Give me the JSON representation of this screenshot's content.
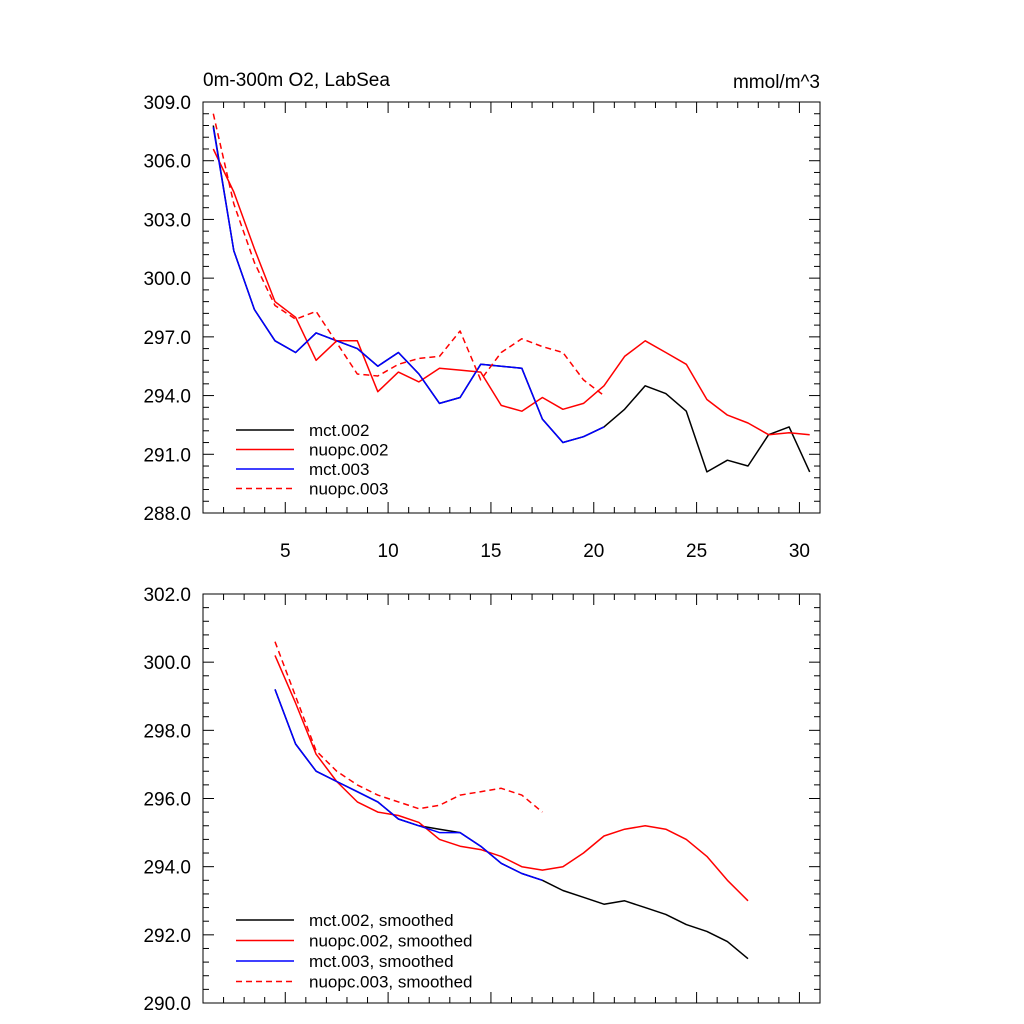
{
  "chart_data": [
    {
      "type": "line",
      "title": "0m-300m O2, LabSea",
      "units": "mmol/m^3",
      "xlabel": "",
      "ylabel": "",
      "xlim": [
        1,
        31
      ],
      "ylim": [
        288.0,
        309.0
      ],
      "x_ticks": [
        5,
        10,
        15,
        20,
        25,
        30
      ],
      "x_tick_labels": [
        "5",
        "10",
        "15",
        "20",
        "25",
        "30"
      ],
      "y_ticks": [
        288.0,
        291.0,
        294.0,
        297.0,
        300.0,
        303.0,
        306.0,
        309.0
      ],
      "y_tick_labels": [
        "288.0",
        "291.0",
        "294.0",
        "297.0",
        "300.0",
        "303.0",
        "306.0",
        "309.0"
      ],
      "legend_position": "bottom-left",
      "series": [
        {
          "name": "mct.002",
          "color": "#000000",
          "dash": "solid",
          "x": [
            1.5,
            2.5,
            3.5,
            4.5,
            5.5,
            6.5,
            7.5,
            8.5,
            9.5,
            10.5,
            11.5,
            12.5,
            13.5,
            14.5,
            15.5,
            16.5,
            17.5,
            18.5,
            19.5,
            20.5,
            21.5,
            22.5,
            23.5,
            24.5,
            25.5,
            26.5,
            27.5,
            28.5,
            29.5,
            30.5
          ],
          "values": [
            307.8,
            301.4,
            298.4,
            296.8,
            296.2,
            297.2,
            296.8,
            296.4,
            295.5,
            296.2,
            295.1,
            293.6,
            293.9,
            295.6,
            295.5,
            295.4,
            292.8,
            291.6,
            291.9,
            292.4,
            293.3,
            294.5,
            294.1,
            293.2,
            290.1,
            290.7,
            290.4,
            292.0,
            292.4,
            290.1
          ]
        },
        {
          "name": "nuopc.002",
          "color": "#ff0000",
          "dash": "solid",
          "x": [
            1.5,
            2.5,
            3.5,
            4.5,
            5.5,
            6.5,
            7.5,
            8.5,
            9.5,
            10.5,
            11.5,
            12.5,
            13.5,
            14.5,
            15.5,
            16.5,
            17.5,
            18.5,
            19.5,
            20.5,
            21.5,
            22.5,
            23.5,
            24.5,
            25.5,
            26.5,
            27.5,
            28.5,
            29.5,
            30.5
          ],
          "values": [
            306.6,
            304.4,
            301.5,
            298.8,
            298.0,
            295.8,
            296.8,
            296.8,
            294.2,
            295.2,
            294.7,
            295.4,
            295.3,
            295.2,
            293.5,
            293.2,
            293.9,
            293.3,
            293.6,
            294.5,
            296.0,
            296.8,
            296.2,
            295.6,
            293.8,
            293.0,
            292.6,
            292.0,
            292.1,
            292.0
          ]
        },
        {
          "name": "mct.003",
          "color": "#0000ff",
          "dash": "solid",
          "x": [
            1.5,
            2.5,
            3.5,
            4.5,
            5.5,
            6.5,
            7.5,
            8.5,
            9.5,
            10.5,
            11.5,
            12.5,
            13.5,
            14.5,
            15.5,
            16.5,
            17.5,
            18.5,
            19.5,
            20.5
          ],
          "values": [
            307.7,
            301.4,
            298.4,
            296.8,
            296.2,
            297.2,
            296.8,
            296.4,
            295.5,
            296.2,
            295.1,
            293.6,
            293.9,
            295.6,
            295.5,
            295.4,
            292.8,
            291.6,
            291.9,
            292.4
          ]
        },
        {
          "name": "nuopc.003",
          "color": "#ff0000",
          "dash": "dashed",
          "x": [
            1.5,
            2.5,
            3.5,
            4.5,
            5.5,
            6.5,
            7.5,
            8.5,
            9.5,
            10.5,
            11.5,
            12.5,
            13.5,
            14.5,
            15.5,
            16.5,
            17.5,
            18.5,
            19.5,
            20.5
          ],
          "values": [
            308.4,
            303.8,
            300.8,
            298.6,
            297.9,
            298.3,
            296.7,
            295.1,
            295.0,
            295.6,
            295.9,
            296.0,
            297.3,
            294.8,
            296.2,
            296.9,
            296.5,
            296.2,
            294.8,
            294.0
          ]
        }
      ]
    },
    {
      "type": "line",
      "title": "",
      "xlabel": "",
      "ylabel": "",
      "xlim": [
        1,
        31
      ],
      "ylim": [
        290.0,
        302.0
      ],
      "x_ticks": [
        5,
        10,
        15,
        20,
        25,
        30
      ],
      "x_tick_labels": [],
      "y_ticks": [
        290.0,
        292.0,
        294.0,
        296.0,
        298.0,
        300.0,
        302.0
      ],
      "y_tick_labels": [
        "290.0",
        "292.0",
        "294.0",
        "296.0",
        "298.0",
        "300.0",
        "302.0"
      ],
      "legend_position": "bottom-left",
      "series": [
        {
          "name": "mct.002, smoothed",
          "color": "#000000",
          "dash": "solid",
          "x": [
            4.5,
            5.5,
            6.5,
            7.5,
            8.5,
            9.5,
            10.5,
            11.5,
            12.5,
            13.5,
            14.5,
            15.5,
            16.5,
            17.5,
            18.5,
            19.5,
            20.5,
            21.5,
            22.5,
            23.5,
            24.5,
            25.5,
            26.5,
            27.5
          ],
          "values": [
            299.2,
            297.6,
            296.8,
            296.5,
            296.2,
            295.9,
            295.4,
            295.2,
            295.1,
            295.0,
            294.6,
            294.1,
            293.8,
            293.6,
            293.3,
            293.1,
            292.9,
            293.0,
            292.8,
            292.6,
            292.3,
            292.1,
            291.8,
            291.3
          ]
        },
        {
          "name": "nuopc.002, smoothed",
          "color": "#ff0000",
          "dash": "solid",
          "x": [
            4.5,
            5.5,
            6.5,
            7.5,
            8.5,
            9.5,
            10.5,
            11.5,
            12.5,
            13.5,
            14.5,
            15.5,
            16.5,
            17.5,
            18.5,
            19.5,
            20.5,
            21.5,
            22.5,
            23.5,
            24.5,
            25.5,
            26.5,
            27.5
          ],
          "values": [
            300.2,
            298.8,
            297.3,
            296.5,
            295.9,
            295.6,
            295.5,
            295.3,
            294.8,
            294.6,
            294.5,
            294.3,
            294.0,
            293.9,
            294.0,
            294.4,
            294.9,
            295.1,
            295.2,
            295.1,
            294.8,
            294.3,
            293.6,
            293.0
          ]
        },
        {
          "name": "mct.003, smoothed",
          "color": "#0000ff",
          "dash": "solid",
          "x": [
            4.5,
            5.5,
            6.5,
            7.5,
            8.5,
            9.5,
            10.5,
            11.5,
            12.5,
            13.5,
            14.5,
            15.5,
            16.5,
            17.5
          ],
          "values": [
            299.2,
            297.6,
            296.8,
            296.5,
            296.2,
            295.9,
            295.4,
            295.2,
            295.0,
            295.0,
            294.6,
            294.1,
            293.8,
            293.6
          ]
        },
        {
          "name": "nuopc.003, smoothed",
          "color": "#ff0000",
          "dash": "dashed",
          "x": [
            4.5,
            5.5,
            6.5,
            7.5,
            8.5,
            9.5,
            10.5,
            11.5,
            12.5,
            13.5,
            14.5,
            15.5,
            16.5,
            17.5
          ],
          "values": [
            300.6,
            299.0,
            297.4,
            296.8,
            296.4,
            296.1,
            295.9,
            295.7,
            295.8,
            296.1,
            296.2,
            296.3,
            296.1,
            295.6
          ]
        }
      ]
    }
  ]
}
